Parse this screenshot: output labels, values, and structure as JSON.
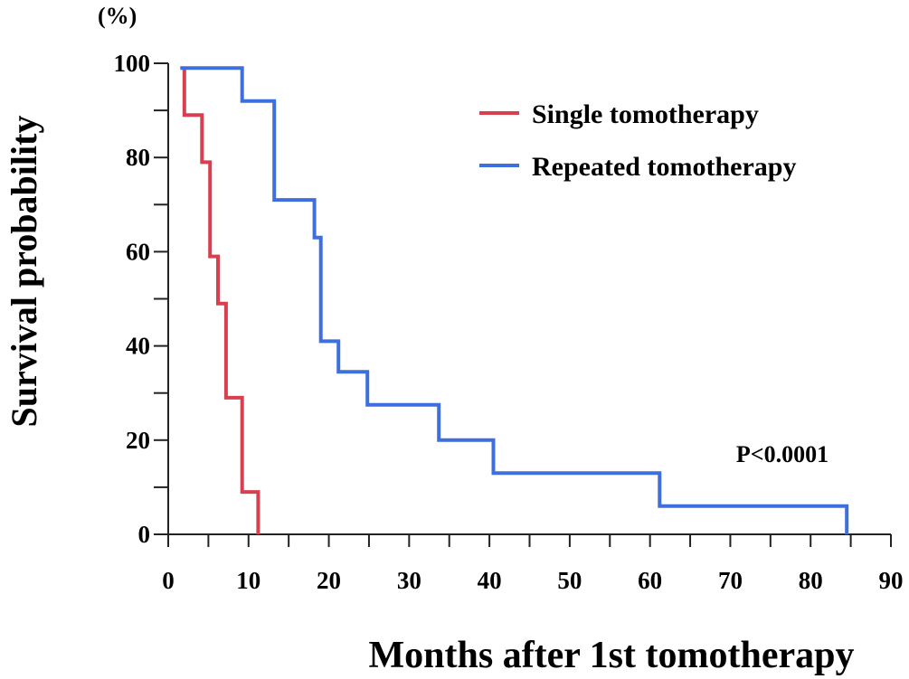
{
  "chart_data": {
    "type": "line",
    "step": true,
    "title": "",
    "xlabel": "Months after 1st tomotherapy",
    "ylabel": "Survival probability",
    "yunit": "(%)",
    "xlim": [
      0,
      90
    ],
    "ylim": [
      0,
      100
    ],
    "xticks": [
      0,
      10,
      20,
      30,
      40,
      50,
      60,
      70,
      80,
      90
    ],
    "yticks": [
      0,
      20,
      40,
      60,
      80,
      100
    ],
    "grid": false,
    "legend_position": "top-right",
    "annotation": "P<0.0001",
    "series": [
      {
        "name": "Single tomotherapy",
        "color": "#d9404f",
        "x": [
          2,
          2,
          4.2,
          4.2,
          5.2,
          5.2,
          6.2,
          6.2,
          7.2,
          7.2,
          9.2,
          9.2,
          11.2,
          11.2
        ],
        "y": [
          99,
          89,
          89,
          79,
          79,
          59,
          59,
          49,
          49,
          29,
          29,
          9,
          9,
          0
        ]
      },
      {
        "name": "Repeated tomotherapy",
        "color": "#3f6fdc",
        "x": [
          1.5,
          9.2,
          9.2,
          13.2,
          13.2,
          18.2,
          18.2,
          19.0,
          19.0,
          21.2,
          21.2,
          24.8,
          24.8,
          33.7,
          33.7,
          40.5,
          40.5,
          61.2,
          61.2,
          84.5,
          84.5
        ],
        "y": [
          99,
          99,
          92,
          92,
          71,
          71,
          63,
          63,
          41,
          41,
          34.5,
          34.5,
          27.5,
          27.5,
          20,
          20,
          13,
          13,
          6,
          6,
          0
        ]
      }
    ]
  }
}
